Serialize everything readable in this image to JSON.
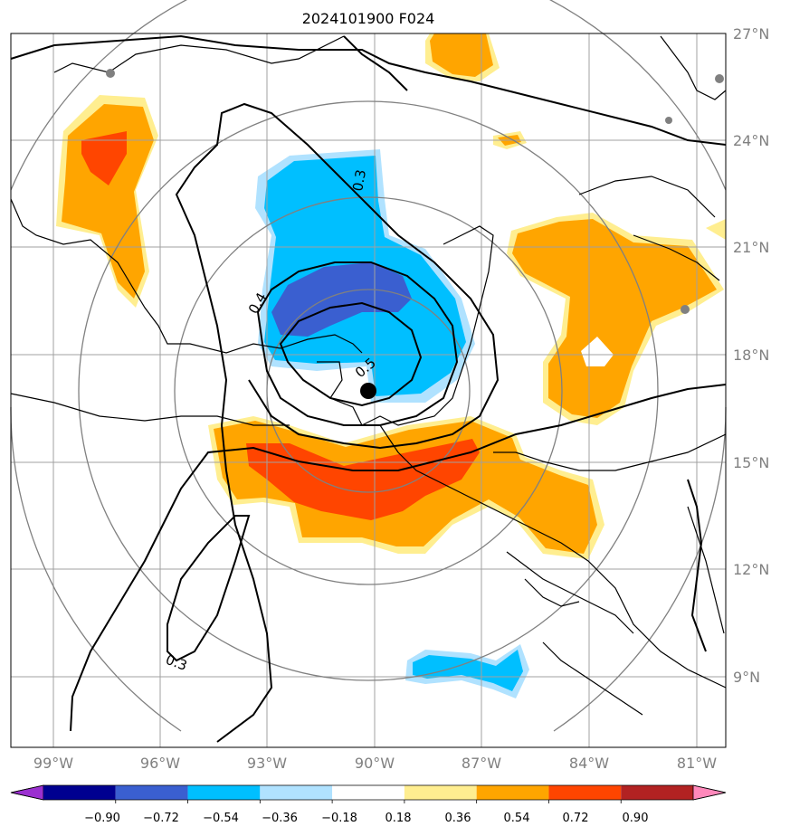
{
  "title": "2024101900 F024",
  "lat_labels": [
    "27°N",
    "24°N",
    "21°N",
    "18°N",
    "15°N",
    "12°N",
    "9°N"
  ],
  "lon_labels": [
    "99°W",
    "96°W",
    "93°W",
    "90°W",
    "87°W",
    "84°W",
    "81°W"
  ],
  "contour_labels": [
    "0.3",
    "0.4",
    "0.5",
    "0.3"
  ],
  "colorbar": {
    "ticks": [
      "−0.90",
      "−0.72",
      "−0.54",
      "−0.36",
      "−0.18",
      "0.18",
      "0.36",
      "0.54",
      "0.72",
      "0.90"
    ],
    "colors": [
      "#9b30d0",
      "#000090",
      "#3a5fd0",
      "#00bfff",
      "#b0e2ff",
      "#ffffff",
      "#ffee90",
      "#ffa500",
      "#ff4500",
      "#b22222",
      "#ff88bb"
    ]
  },
  "fill_colors": {
    "orange": "#ffa500",
    "red_orange": "#ff4500",
    "light_yellow": "#ffee90",
    "deep_sky_blue": "#00bfff",
    "light_blue": "#b0e2ff",
    "royal_blue": "#3a5fd0"
  },
  "center_marker": {
    "label": "storm-center"
  }
}
